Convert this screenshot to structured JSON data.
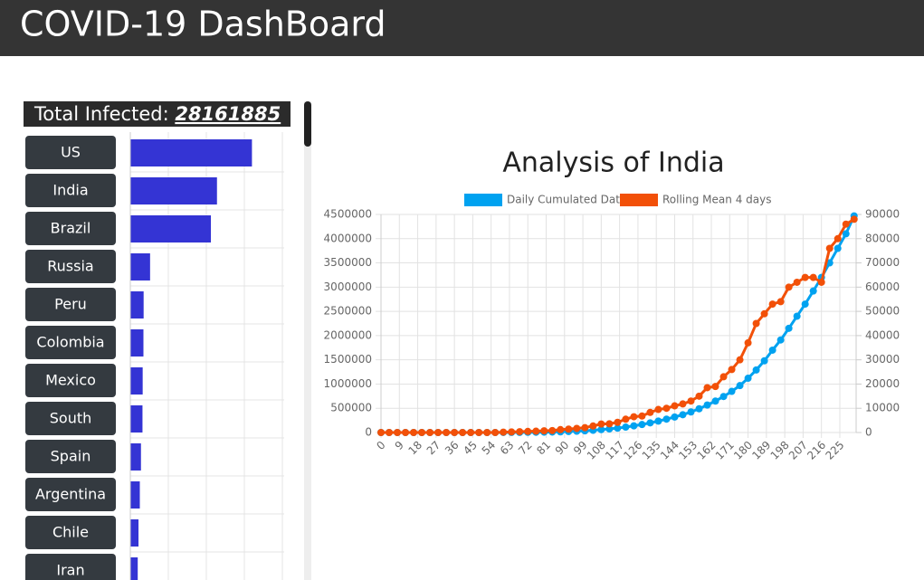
{
  "header": {
    "title": "COVID-19 DashBoard"
  },
  "total": {
    "label": "Total Infected:",
    "value": 28161885
  },
  "chart_data": [
    {
      "type": "bar",
      "orientation": "horizontal",
      "color": "#3434d4",
      "categories": [
        "US",
        "India",
        "Brazil",
        "Russia",
        "Peru",
        "Colombia",
        "Mexico",
        "South",
        "Spain",
        "Argentina",
        "Chile",
        "Iran"
      ],
      "values": [
        6400000,
        4560000,
        4240000,
        1040000,
        700000,
        690000,
        650000,
        640000,
        560000,
        500000,
        430000,
        390000
      ],
      "xlim": [
        0,
        8000000
      ]
    },
    {
      "type": "line",
      "title": "Analysis of India",
      "grid": true,
      "x": [
        0,
        4,
        8,
        12,
        16,
        20,
        24,
        28,
        32,
        36,
        40,
        44,
        48,
        52,
        56,
        60,
        64,
        68,
        72,
        76,
        80,
        84,
        88,
        92,
        96,
        100,
        104,
        108,
        112,
        116,
        120,
        124,
        128,
        132,
        136,
        140,
        144,
        148,
        152,
        156,
        160,
        164,
        168,
        172,
        176,
        180,
        184,
        188,
        192,
        196,
        200,
        204,
        208,
        212,
        216,
        220,
        224,
        228,
        232
      ],
      "xlim": [
        0,
        233
      ],
      "xticks": [
        0,
        9,
        18,
        27,
        36,
        45,
        54,
        63,
        72,
        81,
        90,
        99,
        108,
        117,
        126,
        135,
        144,
        153,
        162,
        171,
        180,
        189,
        198,
        207,
        216,
        225
      ],
      "ylim": [
        0,
        4500000
      ],
      "yticks": [
        0,
        500000,
        1000000,
        1500000,
        2000000,
        2500000,
        3000000,
        3500000,
        4000000,
        4500000
      ],
      "y2lim": [
        0,
        90000
      ],
      "y2ticks": [
        0,
        10000,
        20000,
        30000,
        40000,
        50000,
        60000,
        70000,
        80000,
        90000
      ],
      "series": [
        {
          "name": "Daily Cumulated Data",
          "color": "#00a2f0",
          "axis": "y",
          "values": [
            0,
            0,
            0,
            0,
            0,
            0,
            0,
            0,
            0,
            0,
            0,
            0,
            0,
            0,
            0,
            1000,
            1500,
            2500,
            4000,
            5500,
            7500,
            10000,
            14000,
            20000,
            27000,
            35000,
            46000,
            60000,
            74000,
            90000,
            112000,
            138000,
            165000,
            199000,
            236000,
            276000,
            320000,
            367000,
            425000,
            490000,
            567000,
            649000,
            743000,
            849000,
            968000,
            1120000,
            1290000,
            1480000,
            1700000,
            1910000,
            2150000,
            2400000,
            2650000,
            2920000,
            3200000,
            3500000,
            3800000,
            4100000,
            4470000
          ]
        },
        {
          "name": "Rolling Mean 4 days",
          "color": "#f25008",
          "axis": "y2",
          "values": [
            0,
            0,
            0,
            0,
            0,
            0,
            0,
            0,
            0,
            0,
            0,
            0,
            0,
            0,
            0,
            150,
            250,
            350,
            450,
            550,
            700,
            800,
            1200,
            1400,
            1700,
            2000,
            2700,
            3500,
            3600,
            4200,
            5500,
            6500,
            6800,
            8300,
            9500,
            10000,
            11000,
            11800,
            13000,
            15000,
            18500,
            19000,
            23000,
            26000,
            30000,
            37000,
            45000,
            49000,
            53000,
            54000,
            60000,
            62000,
            64000,
            64000,
            62000,
            76000,
            80000,
            86000,
            88000
          ]
        }
      ]
    }
  ]
}
